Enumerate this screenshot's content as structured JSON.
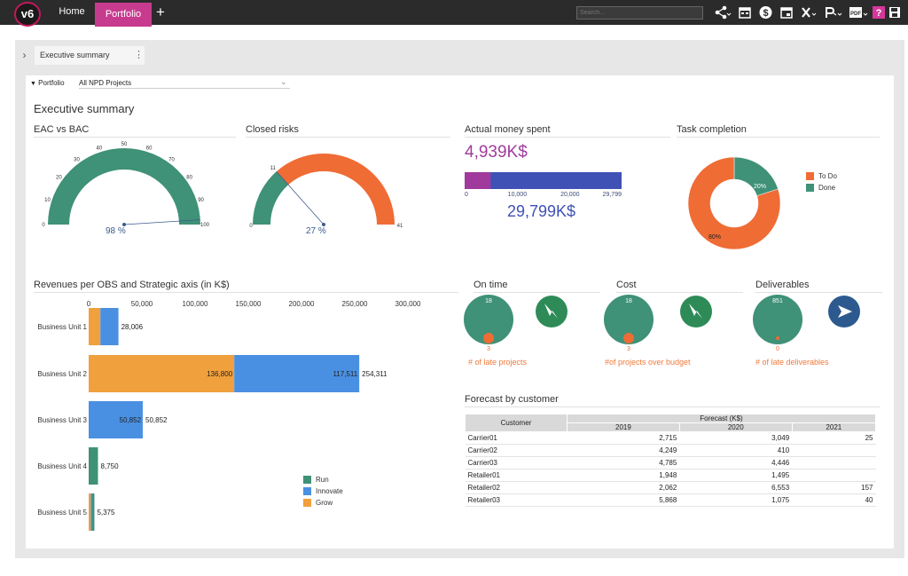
{
  "app": {
    "logo_text": "v6",
    "tabs": [
      {
        "label": "Home"
      },
      {
        "label": "Portfolio"
      }
    ],
    "add_tab": "+",
    "search_placeholder": "Search..."
  },
  "toolbar_icons": [
    "share-icon",
    "calendar-icon",
    "dollar-icon",
    "calendar-event-icon",
    "excel-icon",
    "powerpoint-icon",
    "pdf-icon",
    "help-icon",
    "save-icon"
  ],
  "page_tab": {
    "label": "Executive summary"
  },
  "filter": {
    "label": "Portfolio",
    "value": "All NPD Projects"
  },
  "title": "Executive summary",
  "eac": {
    "title": "EAC vs BAC",
    "value_label": "98 %",
    "value": 98,
    "ticks": [
      "0",
      "10",
      "20",
      "30",
      "40",
      "50",
      "60",
      "70",
      "80",
      "90",
      "100"
    ],
    "color": "#3f9177"
  },
  "risks": {
    "title": "Closed risks",
    "value_label": "27 %",
    "closed": 11,
    "total": 41,
    "min_label": "0",
    "marker_label": "11",
    "max_label": "41",
    "colors": {
      "done": "#3f9177",
      "open": "#ef6c35"
    }
  },
  "money": {
    "title": "Actual money spent",
    "spent_label": "4,939K$",
    "spent": 4939,
    "total_label": "29,799K$",
    "total": 29799,
    "ticks": [
      "0",
      "10,000",
      "20,000",
      "29,799"
    ],
    "colors": {
      "spent": "#a03b9d",
      "bar": "#3f51b5"
    }
  },
  "tasks": {
    "title": "Task completion",
    "legend": [
      {
        "label": "To Do",
        "color": "#ef6c35"
      },
      {
        "label": "Done",
        "color": "#3f9177"
      }
    ],
    "todo_pct": 80,
    "done_pct": 20,
    "todo_label": "80%",
    "done_label": "20%"
  },
  "revenues": {
    "title": "Revenues per OBS and Strategic axis (in K$)",
    "x_ticks": [
      "0",
      "50,000",
      "100,000",
      "150,000",
      "200,000",
      "250,000",
      "300,000"
    ],
    "legend": [
      {
        "label": "Run",
        "color": "#3f9177"
      },
      {
        "label": "Innovate",
        "color": "#4a90e2"
      },
      {
        "label": "Grow",
        "color": "#f0a03c"
      }
    ]
  },
  "chart_data": {
    "type": "bar",
    "orientation": "horizontal",
    "stacked": true,
    "categories": [
      "Business Unit 1",
      "Business Unit 2",
      "Business Unit 3",
      "Business Unit 4",
      "Business Unit 5"
    ],
    "series": [
      {
        "name": "Grow",
        "values": [
          11000,
          136800,
          0,
          0,
          2000
        ]
      },
      {
        "name": "Innovate",
        "values": [
          17006,
          117511,
          50852,
          0,
          1300
        ]
      },
      {
        "name": "Run",
        "values": [
          0,
          0,
          0,
          8750,
          2075
        ]
      }
    ],
    "totals": [
      "28,006",
      "254,311",
      "50,852",
      "8,750",
      "5,375"
    ],
    "segment_labels": [
      [
        "",
        "",
        ""
      ],
      [
        "136,800",
        "117,511",
        ""
      ],
      [
        "",
        "50,852",
        ""
      ],
      [
        "",
        "",
        ""
      ],
      [
        "",
        "",
        ""
      ]
    ],
    "xlim": [
      0,
      300000
    ],
    "xlabel": "",
    "ylabel": ""
  },
  "kpis": [
    {
      "title": "On time",
      "total": "18",
      "count": "3",
      "caption": "# of late projects",
      "arrow_color": "#2e8b57"
    },
    {
      "title": "Cost",
      "total": "18",
      "count": "3",
      "caption": "#of projects over budget",
      "arrow_color": "#2e8b57"
    },
    {
      "title": "Deliverables",
      "total": "851",
      "count": "0",
      "caption": "# of late deliverables",
      "arrow_color": "#2c5a8f"
    }
  ],
  "forecast": {
    "title": "Forecast by customer",
    "customer_header": "Customer",
    "group_header": "Forecast (K$)",
    "years": [
      "2019",
      "2020",
      "2021"
    ],
    "rows": [
      {
        "customer": "Carrier01",
        "v": [
          "2,715",
          "3,049",
          "25"
        ]
      },
      {
        "customer": "Carrier02",
        "v": [
          "4,249",
          "410",
          ""
        ]
      },
      {
        "customer": "Carrier03",
        "v": [
          "4,785",
          "4,446",
          ""
        ]
      },
      {
        "customer": "Retailer01",
        "v": [
          "1,948",
          "1,495",
          ""
        ]
      },
      {
        "customer": "Retailer02",
        "v": [
          "2,062",
          "6,553",
          "157"
        ]
      },
      {
        "customer": "Retailer03",
        "v": [
          "5,868",
          "1,075",
          "40"
        ]
      }
    ]
  }
}
